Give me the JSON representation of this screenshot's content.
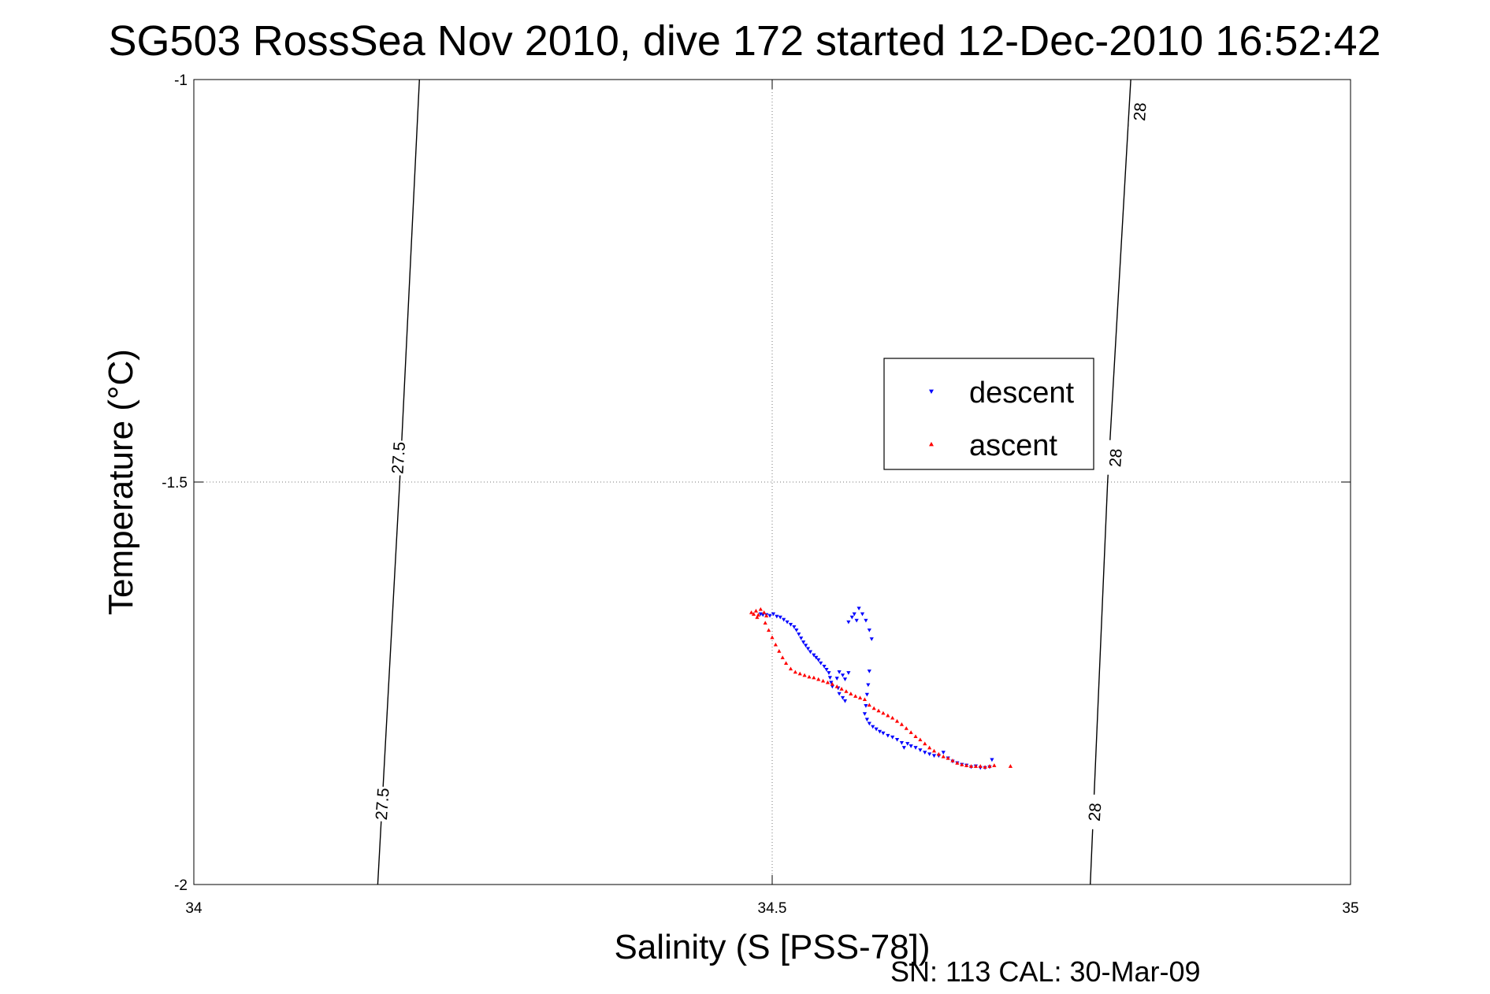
{
  "chart_data": {
    "type": "scatter",
    "title": "SG503 RossSea Nov 2010, dive 172 started 12-Dec-2010 16:52:42",
    "xlabel": "Salinity (S [PSS-78])",
    "ylabel": "Temperature (°C)",
    "xlim": [
      34,
      35
    ],
    "ylim": [
      -2,
      -1
    ],
    "xticks": [
      34,
      34.5,
      35
    ],
    "xtick_labels": [
      "34",
      "34.5",
      "35"
    ],
    "yticks": [
      -2,
      -1.5,
      -1
    ],
    "ytick_labels": [
      "-2",
      "-1.5",
      "-1"
    ],
    "grid": true,
    "legend_position": "center-right",
    "footer": "SN: 113  CAL: 30-Mar-09",
    "density_contours": [
      {
        "label": "27.5",
        "points": [
          [
            34.159,
            -2.0
          ],
          [
            34.178,
            -1.5
          ],
          [
            34.195,
            -1.0
          ]
        ],
        "label_positions": [
          [
            34.163,
            -1.9
          ],
          [
            34.177,
            -1.47
          ]
        ]
      },
      {
        "label": "28",
        "points": [
          [
            34.775,
            -2.0
          ],
          [
            34.79,
            -1.5
          ],
          [
            34.81,
            -1.0
          ]
        ],
        "label_positions": [
          [
            34.779,
            -1.91
          ],
          [
            34.797,
            -1.47
          ],
          [
            34.818,
            -1.04
          ]
        ]
      }
    ],
    "series": [
      {
        "name": "descent",
        "color": "#0000ff",
        "marker": "triangle-down",
        "points": [
          [
            34.49,
            -1.664
          ],
          [
            34.492,
            -1.665
          ],
          [
            34.495,
            -1.665
          ],
          [
            34.498,
            -1.666
          ],
          [
            34.501,
            -1.664
          ],
          [
            34.504,
            -1.667
          ],
          [
            34.507,
            -1.668
          ],
          [
            34.51,
            -1.671
          ],
          [
            34.513,
            -1.674
          ],
          [
            34.516,
            -1.677
          ],
          [
            34.519,
            -1.68
          ],
          [
            34.521,
            -1.684
          ],
          [
            34.523,
            -1.689
          ],
          [
            34.525,
            -1.694
          ],
          [
            34.527,
            -1.699
          ],
          [
            34.529,
            -1.703
          ],
          [
            34.531,
            -1.707
          ],
          [
            34.533,
            -1.711
          ],
          [
            34.536,
            -1.715
          ],
          [
            34.538,
            -1.718
          ],
          [
            34.54,
            -1.721
          ],
          [
            34.542,
            -1.725
          ],
          [
            34.545,
            -1.729
          ],
          [
            34.547,
            -1.733
          ],
          [
            34.549,
            -1.737
          ],
          [
            34.55,
            -1.743
          ],
          [
            34.551,
            -1.749
          ],
          [
            34.552,
            -1.754
          ],
          [
            34.556,
            -1.744
          ],
          [
            34.558,
            -1.736
          ],
          [
            34.561,
            -1.74
          ],
          [
            34.563,
            -1.745
          ],
          [
            34.566,
            -1.737
          ],
          [
            34.557,
            -1.756
          ],
          [
            34.558,
            -1.763
          ],
          [
            34.561,
            -1.768
          ],
          [
            34.563,
            -1.772
          ],
          [
            34.566,
            -1.674
          ],
          [
            34.569,
            -1.668
          ],
          [
            34.571,
            -1.664
          ],
          [
            34.573,
            -1.672
          ],
          [
            34.575,
            -1.657
          ],
          [
            34.578,
            -1.664
          ],
          [
            34.581,
            -1.672
          ],
          [
            34.584,
            -1.684
          ],
          [
            34.586,
            -1.695
          ],
          [
            34.584,
            -1.735
          ],
          [
            34.583,
            -1.752
          ],
          [
            34.582,
            -1.764
          ],
          [
            34.581,
            -1.778
          ],
          [
            34.58,
            -1.788
          ],
          [
            34.582,
            -1.795
          ],
          [
            34.584,
            -1.8
          ],
          [
            34.587,
            -1.804
          ],
          [
            34.59,
            -1.807
          ],
          [
            34.593,
            -1.81
          ],
          [
            34.596,
            -1.812
          ],
          [
            34.6,
            -1.815
          ],
          [
            34.604,
            -1.817
          ],
          [
            34.608,
            -1.82
          ],
          [
            34.612,
            -1.824
          ],
          [
            34.614,
            -1.83
          ],
          [
            34.617,
            -1.825
          ],
          [
            34.62,
            -1.828
          ],
          [
            34.624,
            -1.83
          ],
          [
            34.628,
            -1.833
          ],
          [
            34.632,
            -1.836
          ],
          [
            34.636,
            -1.838
          ],
          [
            34.64,
            -1.84
          ],
          [
            34.644,
            -1.84
          ],
          [
            34.648,
            -1.836
          ],
          [
            34.652,
            -1.843
          ],
          [
            34.656,
            -1.847
          ],
          [
            34.66,
            -1.849
          ],
          [
            34.664,
            -1.851
          ],
          [
            34.668,
            -1.852
          ],
          [
            34.672,
            -1.854
          ],
          [
            34.676,
            -1.853
          ],
          [
            34.68,
            -1.855
          ],
          [
            34.684,
            -1.855
          ],
          [
            34.688,
            -1.854
          ],
          [
            34.69,
            -1.845
          ]
        ]
      },
      {
        "name": "ascent",
        "color": "#ff0000",
        "marker": "triangle-up",
        "points": [
          [
            34.482,
            -1.662
          ],
          [
            34.484,
            -1.664
          ],
          [
            34.486,
            -1.66
          ],
          [
            34.488,
            -1.665
          ],
          [
            34.49,
            -1.658
          ],
          [
            34.493,
            -1.662
          ],
          [
            34.495,
            -1.666
          ],
          [
            34.487,
            -1.668
          ],
          [
            34.494,
            -1.675
          ],
          [
            34.497,
            -1.684
          ],
          [
            34.5,
            -1.693
          ],
          [
            34.503,
            -1.702
          ],
          [
            34.506,
            -1.71
          ],
          [
            34.509,
            -1.718
          ],
          [
            34.512,
            -1.725
          ],
          [
            34.516,
            -1.732
          ],
          [
            34.52,
            -1.736
          ],
          [
            34.524,
            -1.738
          ],
          [
            34.528,
            -1.74
          ],
          [
            34.532,
            -1.742
          ],
          [
            34.536,
            -1.743
          ],
          [
            34.54,
            -1.745
          ],
          [
            34.544,
            -1.747
          ],
          [
            34.548,
            -1.749
          ],
          [
            34.552,
            -1.751
          ],
          [
            34.556,
            -1.754
          ],
          [
            34.56,
            -1.757
          ],
          [
            34.564,
            -1.76
          ],
          [
            34.568,
            -1.763
          ],
          [
            34.572,
            -1.766
          ],
          [
            34.576,
            -1.768
          ],
          [
            34.58,
            -1.77
          ],
          [
            34.584,
            -1.777
          ],
          [
            34.588,
            -1.781
          ],
          [
            34.592,
            -1.784
          ],
          [
            34.596,
            -1.787
          ],
          [
            34.6,
            -1.79
          ],
          [
            34.604,
            -1.793
          ],
          [
            34.608,
            -1.797
          ],
          [
            34.612,
            -1.801
          ],
          [
            34.616,
            -1.806
          ],
          [
            34.62,
            -1.811
          ],
          [
            34.624,
            -1.816
          ],
          [
            34.628,
            -1.82
          ],
          [
            34.632,
            -1.825
          ],
          [
            34.636,
            -1.83
          ],
          [
            34.64,
            -1.834
          ],
          [
            34.644,
            -1.838
          ],
          [
            34.648,
            -1.841
          ],
          [
            34.652,
            -1.843
          ],
          [
            34.656,
            -1.846
          ],
          [
            34.66,
            -1.849
          ],
          [
            34.664,
            -1.851
          ],
          [
            34.668,
            -1.852
          ],
          [
            34.672,
            -1.853
          ],
          [
            34.676,
            -1.853
          ],
          [
            34.68,
            -1.853
          ],
          [
            34.684,
            -1.854
          ],
          [
            34.688,
            -1.853
          ],
          [
            34.692,
            -1.852
          ],
          [
            34.706,
            -1.853
          ]
        ]
      }
    ]
  }
}
